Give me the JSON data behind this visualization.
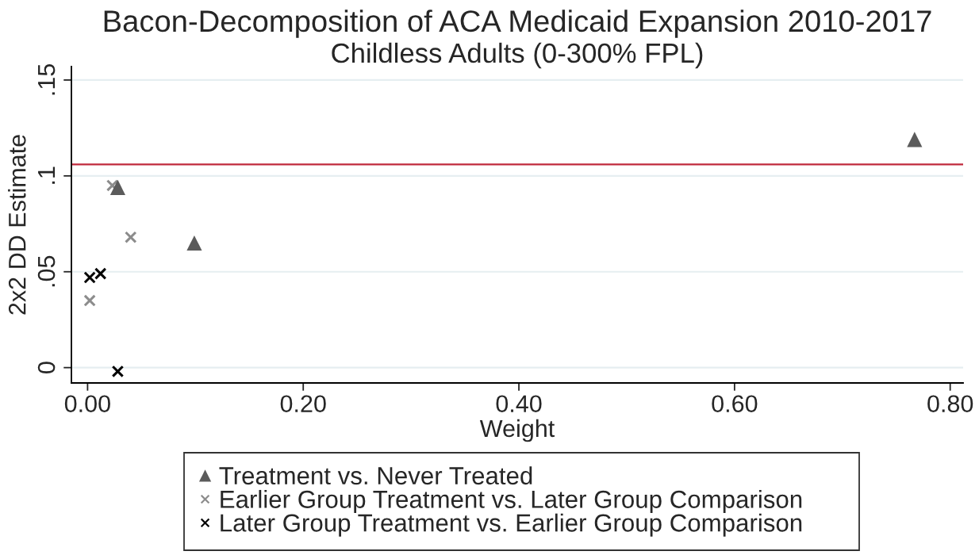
{
  "chart_data": {
    "type": "scatter",
    "title": "Bacon-Decomposition of ACA Medicaid Expansion 2010-2017",
    "subtitle": "Childless Adults (0-300% FPL)",
    "xlabel": "Weight",
    "ylabel": "2x2 DD Estimate",
    "series": [
      {
        "name": "Treatment vs. Never Treated",
        "color": "#5b5b5b",
        "marker": "triangle",
        "x": [
          0.028,
          0.099,
          0.767
        ],
        "values": [
          0.094,
          0.065,
          0.119
        ]
      },
      {
        "name": "Earlier Group Treatment vs. Later Group Comparison",
        "color": "#8c8c8c",
        "marker": "cross",
        "x": [
          0.002,
          0.023,
          0.04
        ],
        "values": [
          0.035,
          0.095,
          0.068
        ]
      },
      {
        "name": "Later Group Treatment vs. Earlier Group Comparison",
        "color": "#000000",
        "marker": "cross",
        "x": [
          0.002,
          0.012,
          0.028
        ],
        "values": [
          0.047,
          0.049,
          -0.002
        ]
      }
    ],
    "xlim": [
      -0.015,
      0.812
    ],
    "ylim": [
      -0.008,
      0.157
    ],
    "xticks": [
      {
        "value": 0,
        "label": "0.00"
      },
      {
        "value": 0.2,
        "label": "0.20"
      },
      {
        "value": 0.4,
        "label": "0.40"
      },
      {
        "value": 0.6,
        "label": "0.60"
      },
      {
        "value": 0.8,
        "label": "0.80"
      }
    ],
    "yticks": [
      0,
      {
        "value": 0.05,
        "label": ".05"
      },
      {
        "value": 0.1,
        "label": ".1"
      },
      {
        "value": 0.15,
        "label": ".15"
      }
    ],
    "grid": "y",
    "legend": "bottom",
    "ref_lines": [
      {
        "axis": "y",
        "value": 0.106,
        "color": "#c0283c"
      }
    ]
  }
}
